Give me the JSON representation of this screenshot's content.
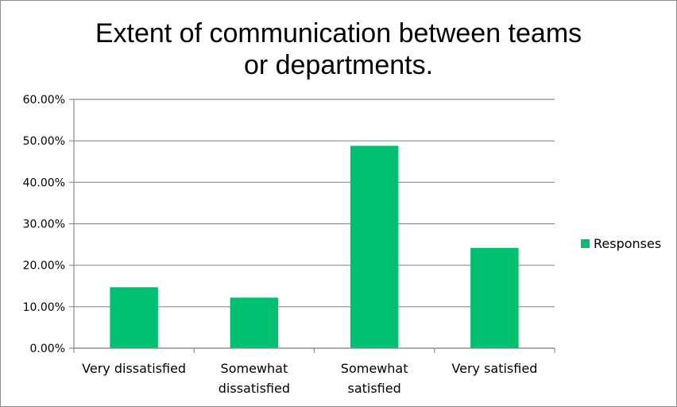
{
  "chart_data": {
    "type": "bar",
    "title_lines": [
      "Extent of communication between teams",
      "or departments."
    ],
    "categories": [
      [
        "Very dissatisfied"
      ],
      [
        "Somewhat",
        "dissatisfied"
      ],
      [
        "Somewhat",
        "satisfied"
      ],
      [
        "Very satisfied"
      ]
    ],
    "series": [
      {
        "name": "Responses",
        "values": [
          0.147,
          0.122,
          0.488,
          0.242
        ],
        "color": "#00BF6F"
      }
    ],
    "y_ticks": [
      "0.00%",
      "10.00%",
      "20.00%",
      "30.00%",
      "40.00%",
      "50.00%",
      "60.00%"
    ],
    "ylim": [
      0,
      0.6
    ],
    "grid": true,
    "legend_position": "right",
    "gridline_color": "#8c8c8c",
    "axis_color": "#8c8c8c"
  }
}
